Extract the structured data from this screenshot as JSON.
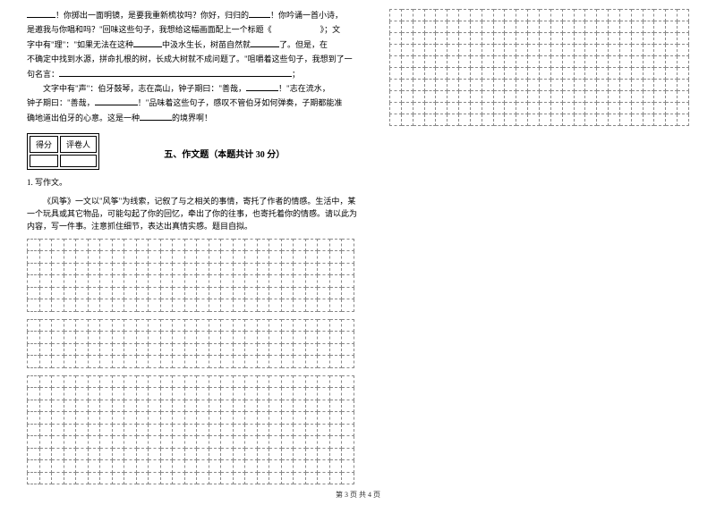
{
  "leftPassage": {
    "line1a": "！你掷出一面明镜，是要我重新梳妆吗？你好，归归的",
    "line1b": "！你吟诵一首小诗，",
    "line2": "是邀我与你唱和吗？\"回味这些句子，我想给这幅画面配上一个标题《　　　　　　》；文",
    "line3a": "字中有\"理\"：\"如果无法在这种",
    "line3b": "中汲水生长，树苗自然就",
    "line3c": "了。但是，在",
    "line4": "不确定中找到水源，拼命扎根的树，长成大树就不成问题了。\"咀嚼着这些句子，我想到了一",
    "line5a": "句名言：",
    "line5b": "；",
    "line6a": "文字中有\"声\"：伯牙鼓琴，志在高山，钟子期曰：\"善哉，",
    "line6b": "！\"志在流水，",
    "line7a": "钟子期曰：\"善哉，",
    "line7b": "！\"品味着这些句子，感叹不管伯牙如何弹奏，子期都能准",
    "line8a": "确地道出伯牙的心意。这是一种",
    "line8b": "的境界啊！"
  },
  "scoreTable": {
    "h1": "得分",
    "h2": "评卷人"
  },
  "section5": {
    "title": "五、作文题（本题共计 30 分）",
    "q1": "1. 写作文。",
    "intro": "《风筝》一文以\"风筝\"为线索，记叙了与之相关的事情，寄托了作者的情感。生活中，某一个玩具或其它物品，可能勾起了你的回忆，牵出了你的往事，也寄托着你的情感。请以此为内容，写一件事。注意抓住细节，表达出真情实感。题目自拟。"
  },
  "grids": {
    "block1_rows": 6,
    "block1_cols": 27,
    "block2_rows": 4,
    "block2_cols": 27,
    "block3_rows": 9,
    "block3_cols": 27,
    "right_rows": 10,
    "right_cols": 26
  },
  "footer": "第 3 页 共 4 页"
}
